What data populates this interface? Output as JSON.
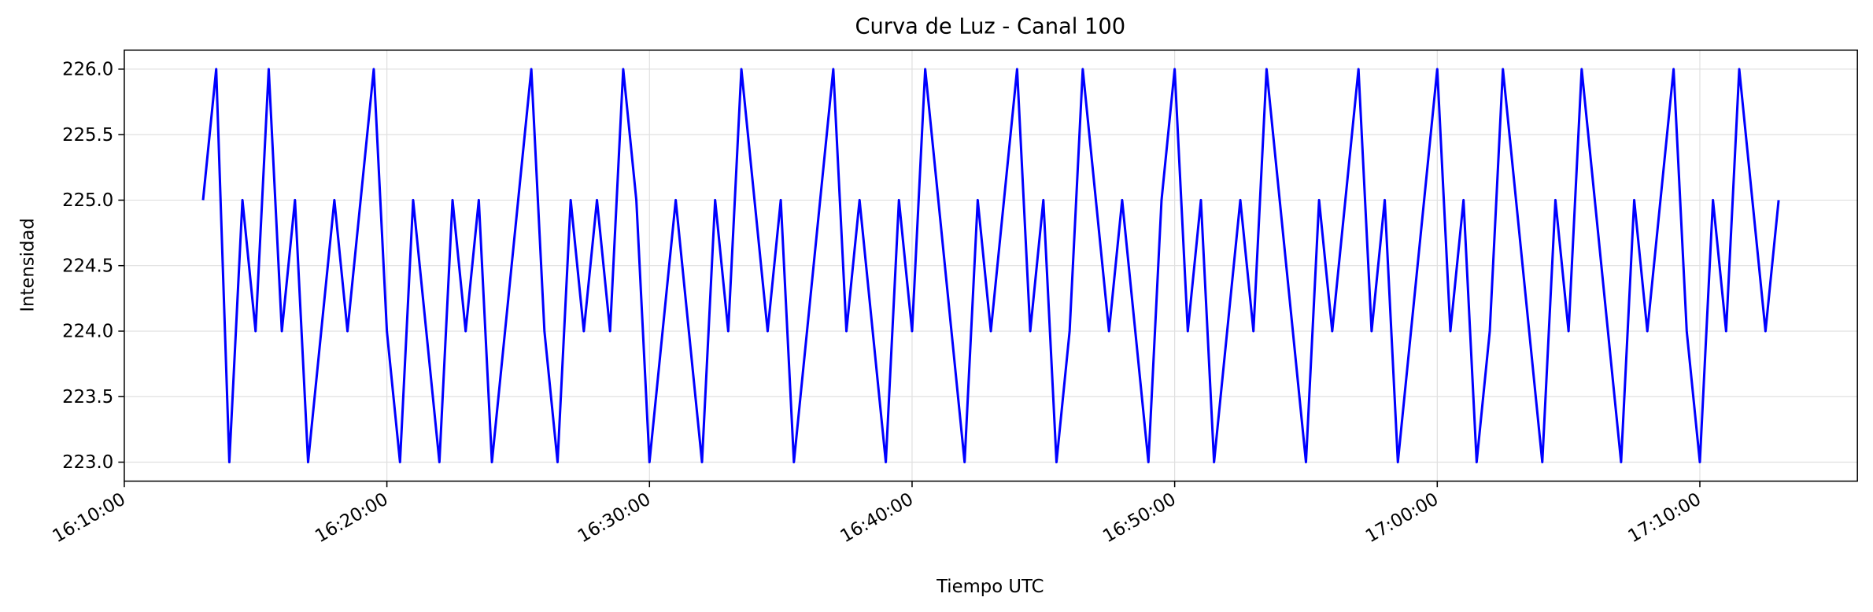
{
  "chart_data": {
    "type": "line",
    "title": "Curva de Luz - Canal 100",
    "x_label": "Tiempo UTC",
    "y_label": "Intensidad",
    "x": [
      "16:13:00",
      "16:13:30",
      "16:14:00",
      "16:14:30",
      "16:15:00",
      "16:15:30",
      "16:16:00",
      "16:16:30",
      "16:17:00",
      "16:17:30",
      "16:18:00",
      "16:18:30",
      "16:19:00",
      "16:19:30",
      "16:20:00",
      "16:20:30",
      "16:21:00",
      "16:21:30",
      "16:22:00",
      "16:22:30",
      "16:23:00",
      "16:23:30",
      "16:24:00",
      "16:24:30",
      "16:25:00",
      "16:25:30",
      "16:26:00",
      "16:26:30",
      "16:27:00",
      "16:27:30",
      "16:28:00",
      "16:28:30",
      "16:29:00",
      "16:29:30",
      "16:30:00",
      "16:30:30",
      "16:31:00",
      "16:31:30",
      "16:32:00",
      "16:32:30",
      "16:33:00",
      "16:33:30",
      "16:34:00",
      "16:34:30",
      "16:35:00",
      "16:35:30",
      "16:36:00",
      "16:36:30",
      "16:37:00",
      "16:37:30",
      "16:38:00",
      "16:38:30",
      "16:39:00",
      "16:39:30",
      "16:40:00",
      "16:40:30",
      "16:41:00",
      "16:41:30",
      "16:42:00",
      "16:42:30",
      "16:43:00",
      "16:43:30",
      "16:44:00",
      "16:44:30",
      "16:45:00",
      "16:45:30",
      "16:46:00",
      "16:46:30",
      "16:47:00",
      "16:47:30",
      "16:48:00",
      "16:48:30",
      "16:49:00",
      "16:49:30",
      "16:50:00",
      "16:50:30",
      "16:51:00",
      "16:51:30",
      "16:52:00",
      "16:52:30",
      "16:53:00",
      "16:53:30",
      "16:54:00",
      "16:54:30",
      "16:55:00",
      "16:55:30",
      "16:56:00",
      "16:56:30",
      "16:57:00",
      "16:57:30",
      "16:58:00",
      "16:58:30",
      "16:59:00",
      "16:59:30",
      "17:00:00",
      "17:00:30",
      "17:01:00",
      "17:01:30",
      "17:02:00",
      "17:02:30",
      "17:03:00",
      "17:03:30",
      "17:04:00",
      "17:04:30",
      "17:05:00",
      "17:05:30",
      "17:06:00",
      "17:06:30",
      "17:07:00",
      "17:07:30",
      "17:08:00",
      "17:08:30",
      "17:09:00",
      "17:09:30",
      "17:10:00",
      "17:10:30",
      "17:11:00",
      "17:11:30",
      "17:12:00",
      "17:12:30",
      "17:13:00"
    ],
    "series": [
      {
        "name": "Canal 100",
        "color": "#0000ff",
        "values": [
          225,
          226,
          223,
          225,
          224,
          226,
          224,
          225,
          223,
          224,
          225,
          224,
          225,
          226,
          224,
          223,
          225,
          224,
          223,
          225,
          224,
          225,
          223,
          224,
          225,
          226,
          224,
          223,
          225,
          224,
          225,
          224,
          226,
          225,
          223,
          224,
          225,
          224,
          223,
          225,
          224,
          226,
          225,
          224,
          225,
          223,
          224,
          225,
          226,
          224,
          225,
          224,
          223,
          225,
          224,
          226,
          225,
          224,
          223,
          225,
          224,
          225,
          226,
          224,
          225,
          223,
          224,
          226,
          225,
          224,
          225,
          224,
          223,
          225,
          226,
          224,
          225,
          223,
          224,
          225,
          224,
          226,
          225,
          224,
          223,
          225,
          224,
          225,
          226,
          224,
          225,
          223,
          224,
          225,
          226,
          224,
          225,
          223,
          224,
          226,
          225,
          224,
          223,
          225,
          224,
          226,
          225,
          224,
          223,
          225,
          224,
          225,
          226,
          224,
          223,
          225,
          224,
          226,
          225,
          224,
          225
        ]
      }
    ],
    "xlim": [
      "16:10:00",
      "17:16:00"
    ],
    "xticks": [
      "16:10:00",
      "16:20:00",
      "16:30:00",
      "16:40:00",
      "16:50:00",
      "17:00:00",
      "17:10:00"
    ],
    "ylim": [
      222.855,
      226.145
    ],
    "yticks": [
      {
        "value": 223,
        "label": "223.0"
      },
      {
        "value": 223.5,
        "label": "223.5"
      },
      {
        "value": 224,
        "label": "224.0"
      },
      {
        "value": 224.5,
        "label": "224.5"
      },
      {
        "value": 225,
        "label": "225.0"
      },
      {
        "value": 225.5,
        "label": "225.5"
      },
      {
        "value": 226,
        "label": "226.0"
      }
    ],
    "grid": true
  }
}
